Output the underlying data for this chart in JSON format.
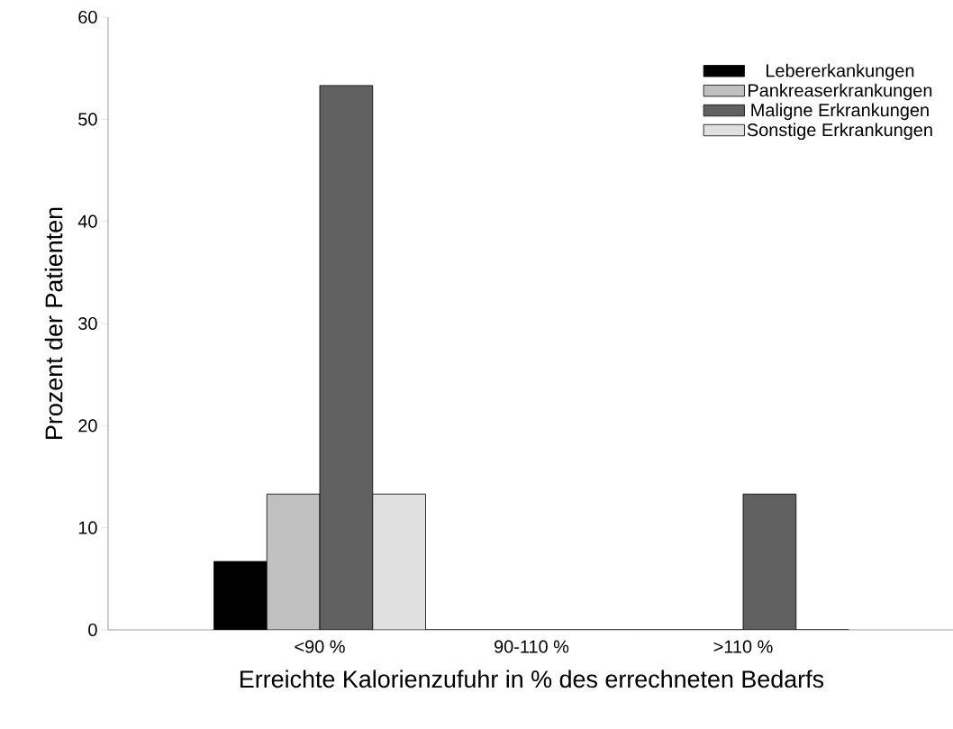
{
  "chart_data": {
    "type": "bar",
    "xlabel": "Erreichte Kalorienzufuhr in % des errechneten Bedarfs",
    "ylabel": "Prozent der Patienten",
    "categories": [
      "<90 %",
      "90-110 %",
      ">110 %"
    ],
    "series": [
      {
        "name": "Lebererkankungen",
        "color": "#000000",
        "values": [
          6.7,
          0,
          0
        ]
      },
      {
        "name": "Pankreaserkrankungen",
        "color": "#c0c0c0",
        "values": [
          13.3,
          0,
          0
        ]
      },
      {
        "name": "Maligne Erkrankungen",
        "color": "#606060",
        "values": [
          53.3,
          0,
          13.3
        ]
      },
      {
        "name": "Sonstige Erkrankungen",
        "color": "#e0e0e0",
        "values": [
          13.3,
          0,
          0
        ]
      }
    ],
    "ylim": [
      0,
      60
    ],
    "yticks": [
      0,
      10,
      20,
      30,
      40,
      50,
      60
    ],
    "grid": false,
    "legend": "top right"
  }
}
